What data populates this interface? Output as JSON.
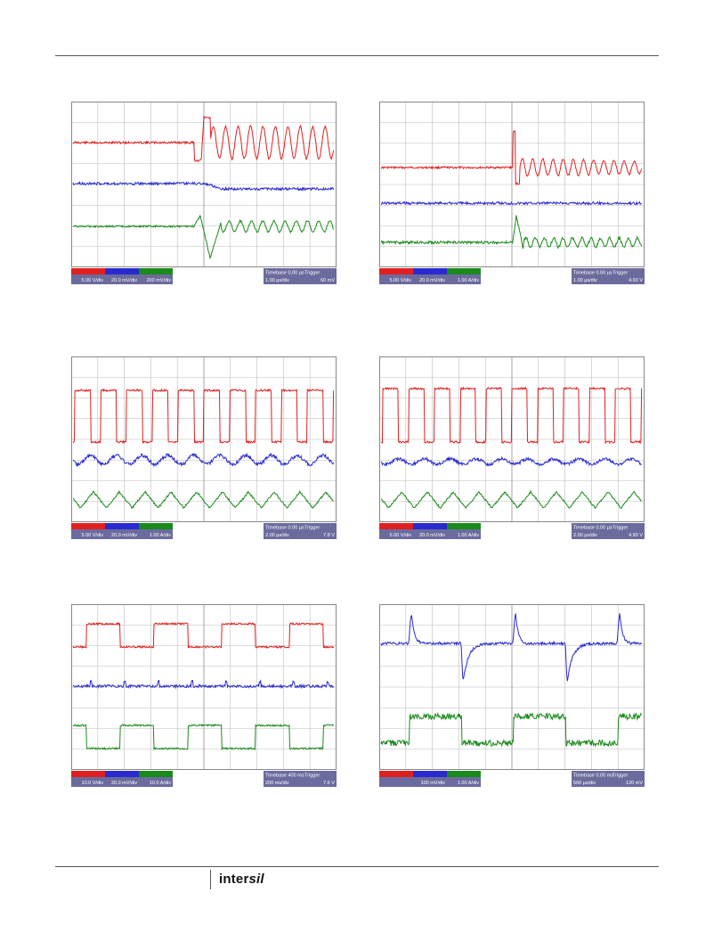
{
  "page": {
    "footer_logo": "intersil",
    "footer_logo_main": "inter",
    "footer_logo_italic": "sil"
  },
  "scopes": [
    {
      "id": "s1",
      "status": {
        "timebase": "Timebase 0.00 µs",
        "trigger": "Trigger",
        "time_div": "1.00 µs/div",
        "val1": "60 mV"
      },
      "ch_red": "5.00 V/div",
      "ch_blue": "20.0 mV/div",
      "ch_green": "200 mV/div"
    },
    {
      "id": "s2",
      "status": {
        "timebase": "Timebase 0.00 µs",
        "trigger": "Trigger",
        "time_div": "1.00 µs/div",
        "val1": "4.90 V"
      },
      "ch_red": "5.00 V/div",
      "ch_blue": "20.0 mV/div",
      "ch_green": "1.00 A/div"
    },
    {
      "id": "s3",
      "status": {
        "timebase": "Timebase 0.00 µs",
        "trigger": "Trigger",
        "time_div": "2.00 µs/div",
        "val1": "7.8 V"
      },
      "ch_red": "5.00 V/div",
      "ch_blue": "20.0 mV/div",
      "ch_green": "1.00 A/div"
    },
    {
      "id": "s4",
      "status": {
        "timebase": "Timebase 0.00 µs",
        "trigger": "Trigger",
        "time_div": "2.00 µs/div",
        "val1": "4.90 V"
      },
      "ch_red": "5.00 V/div",
      "ch_blue": "20.0 mV/div",
      "ch_green": "1.00 A/div"
    },
    {
      "id": "s5",
      "status": {
        "timebase": "Timebase 400 ms",
        "trigger": "Trigger",
        "time_div": "200 ms/div",
        "val1": "7.6 V"
      },
      "ch_red": "10.0 V/div",
      "ch_blue": "20.0 mV/div",
      "ch_green": "10.0 A/div"
    },
    {
      "id": "s6",
      "status": {
        "timebase": "Timebase 0.00 ms",
        "trigger": "Trigger",
        "time_div": "500 µs/div",
        "val1": "120 mV"
      },
      "ch_red": "",
      "ch_blue": "100 mV/div",
      "ch_green": "1.00 A/div"
    }
  ],
  "colors": {
    "red": "#e02020",
    "blue": "#2a2ad0",
    "green": "#1a8a1a",
    "grid": "#bdbdbd",
    "status": "#6b6b9e"
  }
}
